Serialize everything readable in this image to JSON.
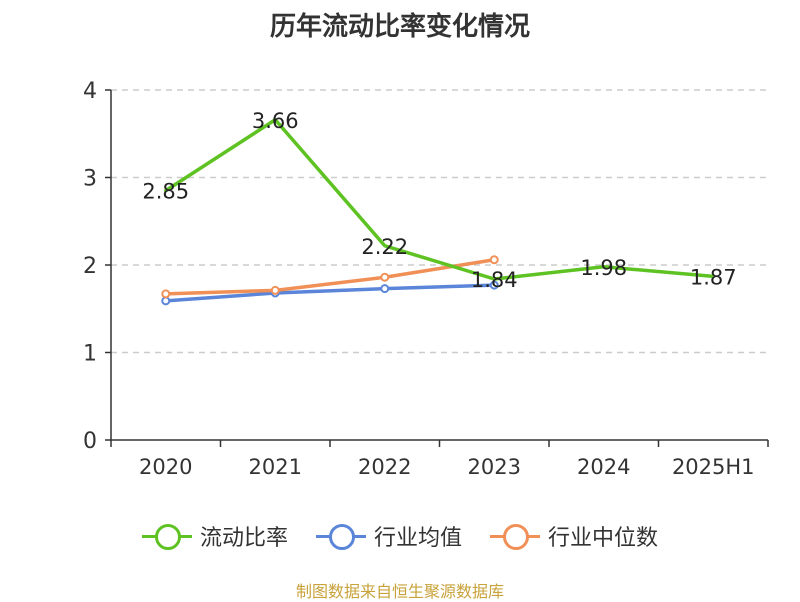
{
  "chart_data": {
    "type": "line",
    "title": "历年流动比率变化情况",
    "categories": [
      "2020",
      "2021",
      "2022",
      "2023",
      "2024",
      "2025H1"
    ],
    "ylim": [
      0,
      4
    ],
    "yticks": [
      "0",
      "1",
      "2",
      "3",
      "4"
    ],
    "grid": true,
    "legend_position": "bottom",
    "series": [
      {
        "name": "流动比率",
        "color": "#5ec322",
        "values": [
          2.85,
          3.66,
          2.22,
          1.84,
          1.98,
          1.87
        ],
        "labels": [
          "2.85",
          "3.66",
          "2.22",
          "1.84",
          "1.98",
          "1.87"
        ],
        "show_markers": false
      },
      {
        "name": "行业均值",
        "color": "#5b85d9",
        "values": [
          1.59,
          1.68,
          1.73,
          1.77,
          null,
          null
        ],
        "show_markers": true
      },
      {
        "name": "行业中位数",
        "color": "#f09057",
        "values": [
          1.67,
          1.71,
          1.86,
          2.06,
          null,
          null
        ],
        "show_markers": true
      }
    ]
  },
  "source": "制图数据来自恒生聚源数据库"
}
